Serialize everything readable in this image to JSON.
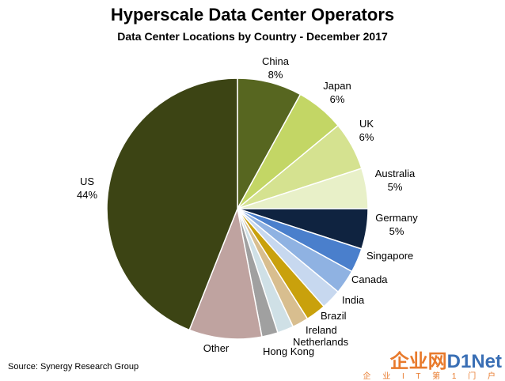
{
  "chart_data": {
    "type": "pie",
    "title": "Hyperscale Data Center Operators",
    "subtitle": "Data Center Locations by Country - December 2017",
    "slices": [
      {
        "label": "China",
        "value": 8,
        "value_label": "8%",
        "color": "#576620"
      },
      {
        "label": "Japan",
        "value": 6,
        "value_label": "6%",
        "color": "#c3d665"
      },
      {
        "label": "UK",
        "value": 6,
        "value_label": "6%",
        "color": "#d5e290"
      },
      {
        "label": "Australia",
        "value": 5,
        "value_label": "5%",
        "color": "#e8f0c8"
      },
      {
        "label": "Germany",
        "value": 5,
        "value_label": "5%",
        "color": "#0f2340"
      },
      {
        "label": "Singapore",
        "value": 3,
        "color": "#4a7fcc"
      },
      {
        "label": "Canada",
        "value": 3,
        "color": "#8fb2e2"
      },
      {
        "label": "India",
        "value": 2.5,
        "color": "#c7d8ef"
      },
      {
        "label": "Brazil",
        "value": 2.5,
        "color": "#c9a10c"
      },
      {
        "label": "Ireland",
        "value": 2,
        "color": "#d8be8f"
      },
      {
        "label": "Netherlands",
        "value": 2,
        "color": "#cfe0e6"
      },
      {
        "label": "Hong Kong",
        "value": 2,
        "color": "#a0a0a0"
      },
      {
        "label": "Other",
        "value": 9,
        "color": "#bfa3a0"
      },
      {
        "label": "US",
        "value": 44,
        "value_label": "44%",
        "color": "#3c4414"
      }
    ]
  },
  "source": "Source: Synergy Research Group",
  "watermark": {
    "main_left": "企业网",
    "main_right": "D1Net",
    "sub": "企 业 I T 第 1 门 户"
  }
}
